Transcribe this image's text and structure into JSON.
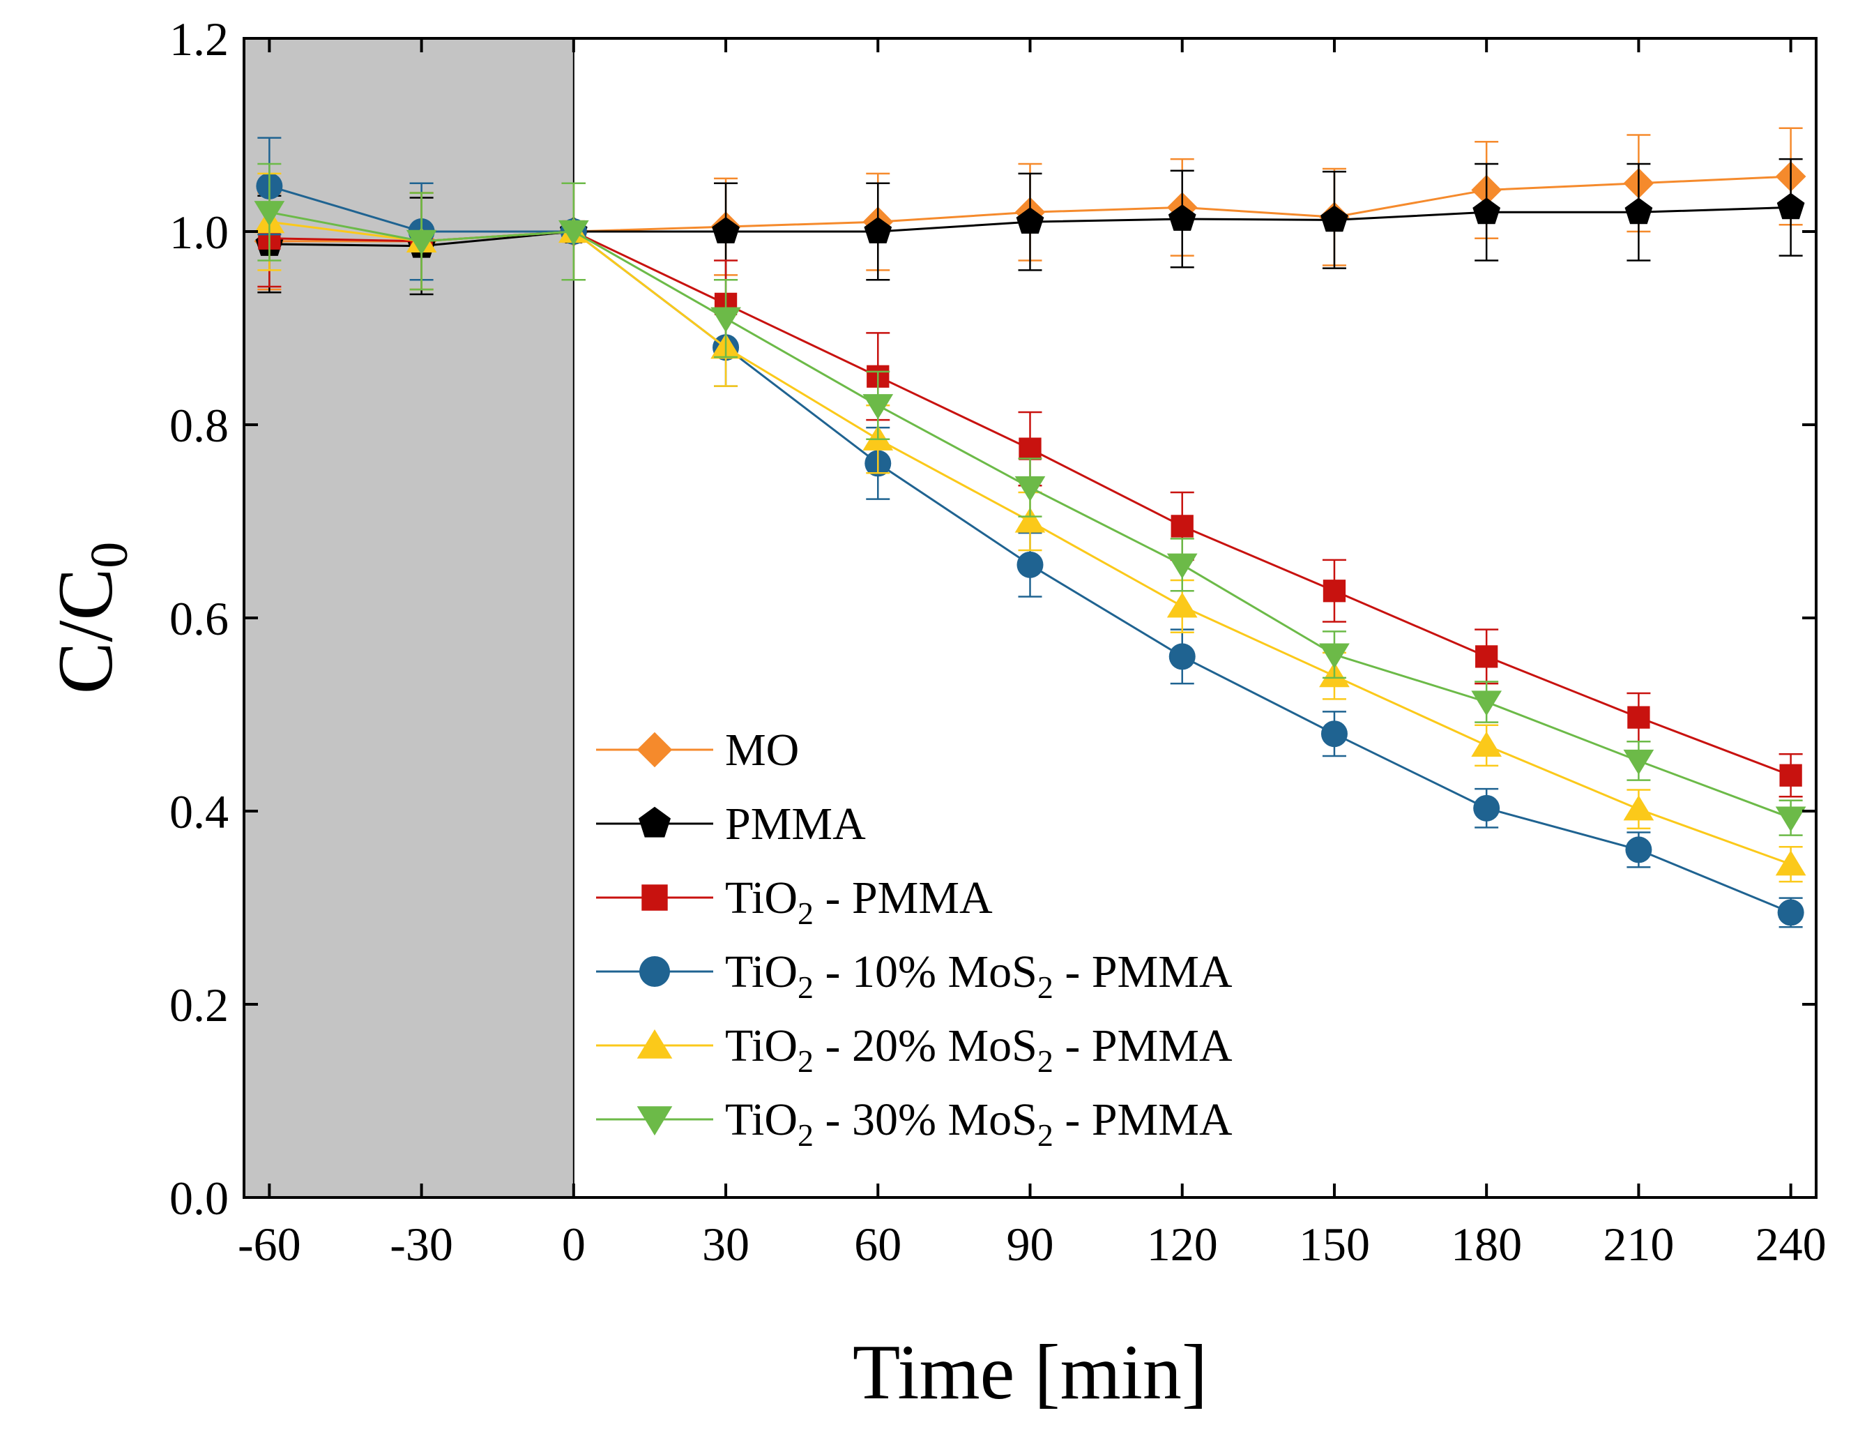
{
  "chart_data": {
    "type": "line",
    "title": "",
    "xlabel": "Time [min]",
    "ylabel_main": "C/C",
    "ylabel_sub": "0",
    "xlim": [
      -65,
      245
    ],
    "ylim": [
      0.0,
      1.2
    ],
    "xticks": [
      -60,
      -30,
      0,
      30,
      60,
      90,
      120,
      150,
      180,
      210,
      240
    ],
    "xtick_labels": [
      "-60",
      "-30",
      "0",
      "30",
      "60",
      "90",
      "120",
      "150",
      "180",
      "210",
      "240"
    ],
    "yticks": [
      0.0,
      0.2,
      0.4,
      0.6,
      0.8,
      1.0,
      1.2
    ],
    "ytick_labels": [
      "0.0",
      "0.2",
      "0.4",
      "0.6",
      "0.8",
      "1.0",
      "1.2"
    ],
    "dark_region": {
      "x_start": -65,
      "x_end": 0,
      "color": "#c4c4c4"
    },
    "legend_position": "center-left",
    "x": [
      -60,
      -30,
      0,
      30,
      60,
      90,
      120,
      150,
      180,
      210,
      240
    ],
    "series": [
      {
        "name": "MO",
        "legend_parts": [
          {
            "t": "MO",
            "sub": false
          }
        ],
        "color": "#f58a2c",
        "marker": "diamond",
        "values": [
          0.99,
          0.99,
          1.0,
          1.005,
          1.01,
          1.02,
          1.025,
          1.015,
          1.043,
          1.05,
          1.057
        ],
        "errors": [
          0.05,
          0.05,
          0.05,
          0.05,
          0.05,
          0.05,
          0.05,
          0.05,
          0.05,
          0.05,
          0.05
        ]
      },
      {
        "name": "PMMA",
        "legend_parts": [
          {
            "t": "PMMA",
            "sub": false
          }
        ],
        "color": "#000000",
        "marker": "pentagon",
        "values": [
          0.987,
          0.985,
          1.0,
          1.0,
          1.0,
          1.01,
          1.013,
          1.012,
          1.02,
          1.02,
          1.025
        ],
        "errors": [
          0.05,
          0.05,
          0.05,
          0.05,
          0.05,
          0.05,
          0.05,
          0.05,
          0.05,
          0.05,
          0.05
        ]
      },
      {
        "name": "TiO2 - PMMA",
        "legend_parts": [
          {
            "t": "TiO",
            "sub": false
          },
          {
            "t": "2",
            "sub": true
          },
          {
            "t": " - PMMA",
            "sub": false
          }
        ],
        "color": "#c8120f",
        "marker": "square",
        "values": [
          0.993,
          0.99,
          1.0,
          0.925,
          0.85,
          0.775,
          0.695,
          0.628,
          0.56,
          0.497,
          0.437
        ],
        "errors": [
          0.05,
          0.05,
          0.05,
          0.045,
          0.045,
          0.038,
          0.035,
          0.032,
          0.028,
          0.025,
          0.022
        ]
      },
      {
        "name": "TiO2 - 10% MoS2 - PMMA",
        "legend_parts": [
          {
            "t": "TiO",
            "sub": false
          },
          {
            "t": "2",
            "sub": true
          },
          {
            "t": " - 10% MoS",
            "sub": false
          },
          {
            "t": "2",
            "sub": true
          },
          {
            "t": " - PMMA",
            "sub": false
          }
        ],
        "color": "#1f6391",
        "marker": "circle",
        "values": [
          1.047,
          1.0,
          1.0,
          0.88,
          0.76,
          0.655,
          0.56,
          0.48,
          0.403,
          0.36,
          0.295
        ],
        "errors": [
          0.05,
          0.05,
          0.05,
          0.04,
          0.037,
          0.033,
          0.028,
          0.023,
          0.02,
          0.018,
          0.015
        ]
      },
      {
        "name": "TiO2 - 20% MoS2 - PMMA",
        "legend_parts": [
          {
            "t": "TiO",
            "sub": false
          },
          {
            "t": "2",
            "sub": true
          },
          {
            "t": " - 20% MoS",
            "sub": false
          },
          {
            "t": "2",
            "sub": true
          },
          {
            "t": " - PMMA",
            "sub": false
          }
        ],
        "color": "#fbc91a",
        "marker": "triangle-up",
        "values": [
          1.01,
          0.99,
          1.0,
          0.88,
          0.785,
          0.7,
          0.612,
          0.54,
          0.468,
          0.402,
          0.345
        ],
        "errors": [
          0.05,
          0.05,
          0.05,
          0.04,
          0.035,
          0.03,
          0.027,
          0.024,
          0.021,
          0.02,
          0.018
        ]
      },
      {
        "name": "TiO2 - 30% MoS2 - PMMA",
        "legend_parts": [
          {
            "t": "TiO",
            "sub": false
          },
          {
            "t": "2",
            "sub": true
          },
          {
            "t": " - 30% MoS",
            "sub": false
          },
          {
            "t": "2",
            "sub": true
          },
          {
            "t": " - PMMA",
            "sub": false
          }
        ],
        "color": "#6cba48",
        "marker": "triangle-down",
        "values": [
          1.02,
          0.99,
          1.0,
          0.91,
          0.82,
          0.735,
          0.655,
          0.562,
          0.513,
          0.452,
          0.393
        ],
        "errors": [
          0.05,
          0.05,
          0.05,
          0.04,
          0.035,
          0.03,
          0.027,
          0.024,
          0.021,
          0.02,
          0.018
        ]
      }
    ]
  }
}
